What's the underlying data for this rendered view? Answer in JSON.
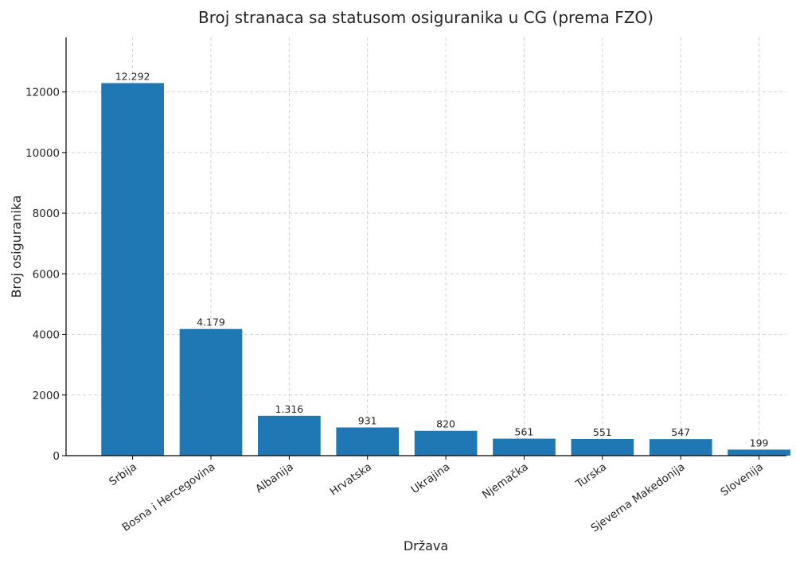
{
  "chart_data": {
    "type": "bar",
    "title": "Broj stranaca sa statusom osiguranika u CG (prema FZO)",
    "xlabel": "Država",
    "ylabel": "Broj osiguranika",
    "categories": [
      "Srbija",
      "Bosna i Hercegovina",
      "Albanija",
      "Hrvatska",
      "Ukrajina",
      "Njemačka",
      "Turska",
      "Sjeverna Makedonija",
      "Slovenija"
    ],
    "values": [
      12292,
      4179,
      1316,
      931,
      820,
      561,
      551,
      547,
      199
    ],
    "data_labels": [
      "12.292",
      "4.179",
      "1.316",
      "931",
      "820",
      "561",
      "551",
      "547",
      "199"
    ],
    "y_ticks": [
      0,
      2000,
      4000,
      6000,
      8000,
      10000,
      12000
    ],
    "ylim": [
      0,
      13800
    ],
    "grid": true,
    "bar_color": "#1f77b4"
  }
}
